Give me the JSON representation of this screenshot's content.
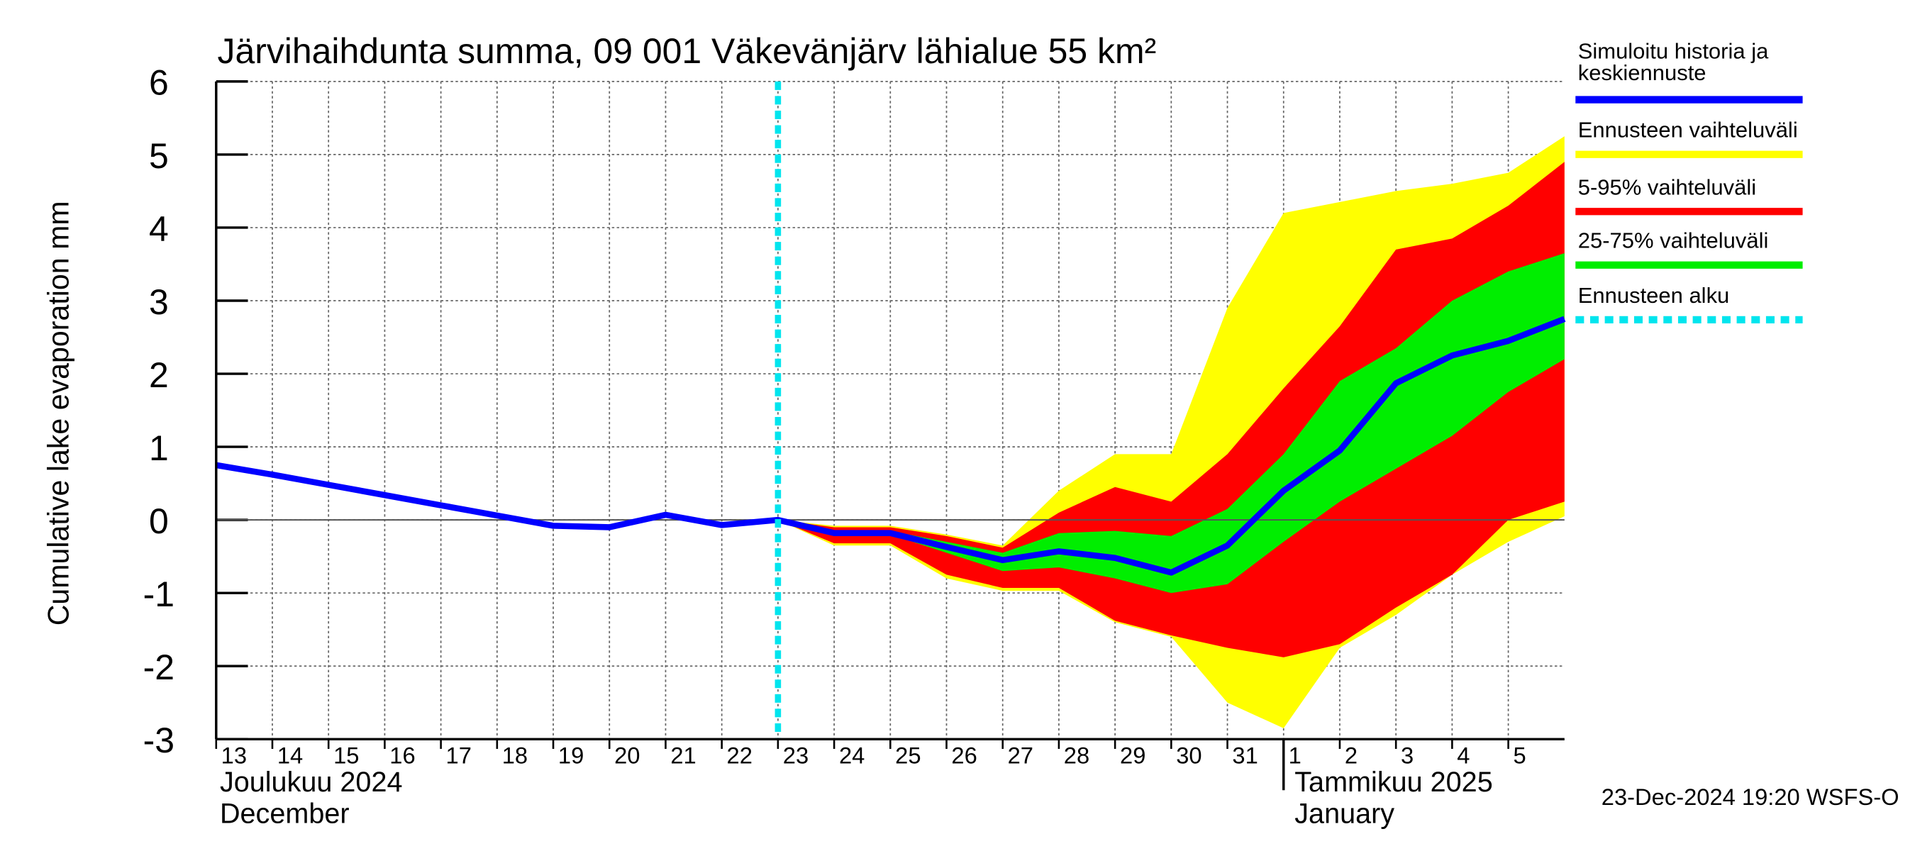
{
  "chart_data": {
    "type": "band-line",
    "title": "Järvihaihdunta summa, 09 001 Väkevänjärv lähialue 55 km²",
    "y_label": "Cumulative lake evaporation   mm",
    "footer": "23-Dec-2024 19:20 WSFS-O",
    "month_labels": [
      {
        "x": "2024-12-13",
        "lines": [
          "Joulukuu  2024",
          "December"
        ]
      },
      {
        "x": "2025-01-02",
        "lines": [
          "Tammikuu  2025",
          "January"
        ]
      }
    ],
    "x": [
      "2024-12-13",
      "2024-12-14",
      "2024-12-15",
      "2024-12-16",
      "2024-12-17",
      "2024-12-18",
      "2024-12-19",
      "2024-12-20",
      "2024-12-21",
      "2024-12-22",
      "2024-12-23",
      "2024-12-24",
      "2024-12-25",
      "2024-12-26",
      "2024-12-27",
      "2024-12-28",
      "2024-12-29",
      "2024-12-30",
      "2024-12-31",
      "2025-01-01",
      "2025-01-02",
      "2025-01-03",
      "2025-01-04",
      "2025-01-05",
      "2025-01-06"
    ],
    "xlim": [
      "2024-12-13",
      "2025-01-06"
    ],
    "xticks": [
      {
        "value": "2024-12-13",
        "label": "13"
      },
      {
        "value": "2024-12-14",
        "label": "14"
      },
      {
        "value": "2024-12-15",
        "label": "15"
      },
      {
        "value": "2024-12-16",
        "label": "16"
      },
      {
        "value": "2024-12-17",
        "label": "17"
      },
      {
        "value": "2024-12-18",
        "label": "18"
      },
      {
        "value": "2024-12-19",
        "label": "19"
      },
      {
        "value": "2024-12-20",
        "label": "20"
      },
      {
        "value": "2024-12-21",
        "label": "21"
      },
      {
        "value": "2024-12-22",
        "label": "22"
      },
      {
        "value": "2024-12-23",
        "label": "23"
      },
      {
        "value": "2024-12-24",
        "label": "24"
      },
      {
        "value": "2024-12-25",
        "label": "25"
      },
      {
        "value": "2024-12-26",
        "label": "26"
      },
      {
        "value": "2024-12-27",
        "label": "27"
      },
      {
        "value": "2024-12-28",
        "label": "28"
      },
      {
        "value": "2024-12-29",
        "label": "29"
      },
      {
        "value": "2024-12-30",
        "label": "30"
      },
      {
        "value": "2024-12-31",
        "label": "31"
      },
      {
        "value": "2025-01-01",
        "label": "1"
      },
      {
        "value": "2025-01-02",
        "label": "2"
      },
      {
        "value": "2025-01-03",
        "label": "3"
      },
      {
        "value": "2025-01-04",
        "label": "4"
      },
      {
        "value": "2025-01-05",
        "label": "5"
      }
    ],
    "ylim": [
      -3,
      6
    ],
    "yticks": [
      -3,
      -2,
      -1,
      0,
      1,
      2,
      3,
      4,
      5,
      6
    ],
    "grid": true,
    "bands": [
      {
        "name": "Ennusteen vaihteluväli",
        "color": "#ffff00",
        "upper": [
          null,
          null,
          null,
          null,
          null,
          null,
          null,
          null,
          null,
          null,
          0,
          -0.08,
          -0.08,
          -0.2,
          -0.35,
          0.4,
          0.9,
          0.9,
          2.9,
          4.2,
          4.35,
          4.5,
          4.6,
          4.75,
          5.25
        ],
        "lower": [
          null,
          null,
          null,
          null,
          null,
          null,
          null,
          null,
          null,
          null,
          0,
          -0.35,
          -0.35,
          -0.8,
          -0.97,
          -0.97,
          -1.4,
          -1.6,
          -2.5,
          -2.85,
          -1.75,
          -1.3,
          -0.75,
          -0.3,
          0.05
        ]
      },
      {
        "name": "5-95% vaihteluväli",
        "color": "#ff0000",
        "upper": [
          null,
          null,
          null,
          null,
          null,
          null,
          null,
          null,
          null,
          null,
          0,
          -0.1,
          -0.1,
          -0.22,
          -0.38,
          0.1,
          0.45,
          0.25,
          0.9,
          1.8,
          2.65,
          3.7,
          3.85,
          4.3,
          4.9
        ],
        "lower": [
          null,
          null,
          null,
          null,
          null,
          null,
          null,
          null,
          null,
          null,
          0,
          -0.32,
          -0.32,
          -0.75,
          -0.93,
          -0.93,
          -1.38,
          -1.58,
          -1.75,
          -1.88,
          -1.7,
          -1.2,
          -0.75,
          0,
          0.25
        ]
      },
      {
        "name": "25-75% vaihteluväli",
        "color": "#00ee00",
        "upper": [
          null,
          null,
          null,
          null,
          null,
          null,
          null,
          null,
          null,
          null,
          0,
          -0.15,
          -0.15,
          -0.3,
          -0.45,
          -0.18,
          -0.15,
          -0.22,
          0.15,
          0.9,
          1.9,
          2.35,
          3,
          3.4,
          3.65
        ],
        "lower": [
          null,
          null,
          null,
          null,
          null,
          null,
          null,
          null,
          null,
          null,
          0,
          -0.2,
          -0.2,
          -0.45,
          -0.7,
          -0.65,
          -0.8,
          -1,
          -0.88,
          -0.3,
          0.25,
          0.7,
          1.15,
          1.75,
          2.2
        ]
      }
    ],
    "series": [
      {
        "name": "Simuloitu historia ja\nkeskiennuste",
        "color": "#0000ff",
        "values": [
          0.75,
          0.62,
          0.48,
          0.34,
          0.2,
          0.06,
          -0.08,
          -0.1,
          0.07,
          -0.07,
          0,
          -0.18,
          -0.18,
          -0.37,
          -0.55,
          -0.43,
          -0.52,
          -0.72,
          -0.35,
          0.4,
          0.95,
          1.87,
          2.25,
          2.45,
          2.75
        ]
      }
    ],
    "forecast_start": {
      "name": "Ennusteen alku",
      "x": "2024-12-23",
      "color": "#00e5ee"
    }
  }
}
